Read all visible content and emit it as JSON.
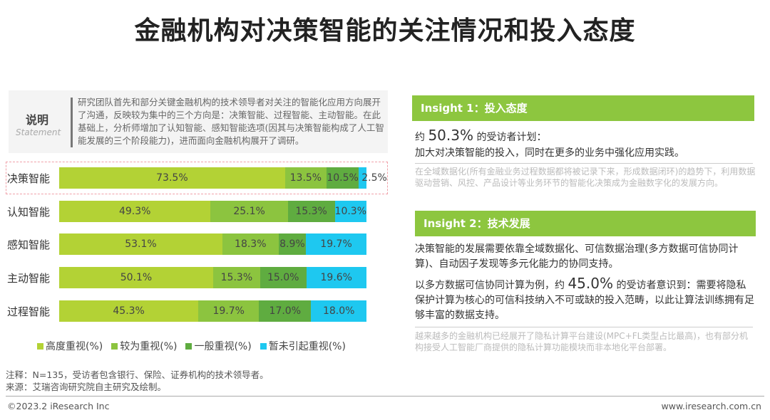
{
  "title": "金融机构对决策智能的关注情况和投入态度",
  "statement": {
    "heading": "说明",
    "sub": "Statement",
    "text": "研究团队首先和部分关键金融机构的技术领导者对关注的智能化应用方向展开了沟通，反映较为集中的三个方向是：决策智能、过程智能、主动智能。在此基础上，分析师增加了认知智能、感知智能选项(因其与决策智能构成了人工智能发展的三个阶段能力)，进而面向金融机构展开了调研。"
  },
  "chart_data": {
    "type": "bar",
    "orientation": "horizontal",
    "stacked": true,
    "categories": [
      "决策智能",
      "认知智能",
      "感知智能",
      "主动智能",
      "过程智能"
    ],
    "series": [
      {
        "name": "高度重视(%)",
        "color": "#b3d235",
        "values": [
          73.5,
          49.3,
          53.1,
          50.1,
          45.3
        ],
        "labels": [
          "73.5%",
          "49.3%",
          "53.1%",
          "50.1%",
          "45.3%"
        ]
      },
      {
        "name": "较为重视(%)",
        "color": "#8cc43f",
        "values": [
          13.5,
          25.1,
          18.3,
          15.3,
          19.7
        ],
        "labels": [
          "13.5%",
          "25.1%",
          "18.3%",
          "15.3%",
          "19.7%"
        ]
      },
      {
        "name": "一般重视(%)",
        "color": "#5fac40",
        "values": [
          10.5,
          15.3,
          8.9,
          15.0,
          17.0
        ],
        "labels": [
          "10.5%",
          "15.3%",
          "8.9%",
          "15.0%",
          "17.0%"
        ]
      },
      {
        "name": "暂未引起重视(%)",
        "color": "#1ec8f0",
        "values": [
          2.5,
          10.3,
          19.7,
          19.6,
          18.0
        ],
        "labels": [
          "2.5%",
          "10.3%",
          "19.7%",
          "19.6%",
          "18.0%"
        ]
      }
    ],
    "xlim": [
      0,
      100
    ],
    "legend": "bottom",
    "highlighted": "决策智能"
  },
  "notes": {
    "note": "注释：N=135，受访者包含银行、保险、证券机构的技术领导者。",
    "source": "来源：艾瑞咨询研究院自主研究及绘制。"
  },
  "insight1": {
    "header": "Insight 1：投入态度",
    "pre": "约 ",
    "value": "50.3%",
    "post": " 的受访者计划：",
    "line2": "加大对决策智能的投入，同时在更多的业务中强化应用实践。",
    "gray": "在全域数据化(所有金融业务过程数据都将被记录下来，形成数据闭环)的趋势下，利用数据驱动营销、风控、产品设计等业务环节的智能化决策成为金融数字化的发展方向。"
  },
  "insight2": {
    "header": "Insight 2：技术发展",
    "p1": "决策智能的发展需要依靠全域数据化、可信数据治理(多方数据可信协同计算)、自动因子发现等多元化能力的协同支持。",
    "pre": "以多方数据可信协同计算为例，约 ",
    "value": "45.0%",
    "post": " 的受访者意识到：需要将隐私保护计算为核心的可信科技纳入不可或缺的投入范畴，以此让算法训练拥有足够丰富的数据支持。",
    "gray": "越来越多的金融机构已经展开了隐私计算平台建设(MPC+FL类型占比最高)，也有部分机构接受人工智能厂商提供的隐私计算功能模块而非本地化平台部署。"
  },
  "footer": {
    "left": "©2023.2 iResearch Inc",
    "right": "www.iresearch.com.cn"
  }
}
